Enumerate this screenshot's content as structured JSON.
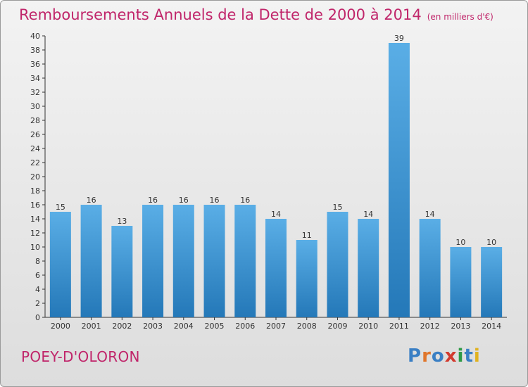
{
  "header": {
    "title": "Remboursements Annuels de la Dette de 2000 à 2014",
    "unit": "(en milliers d'€)"
  },
  "footer": {
    "commune": "POEY-D'OLORON",
    "logo": "Proxiti"
  },
  "colors": {
    "title": "#c0256a",
    "bar_top": "#5aaee6",
    "bar_bottom": "#2478b8"
  },
  "chart_data": {
    "type": "bar",
    "title": "Remboursements Annuels de la Dette de 2000 à 2014",
    "xlabel": "",
    "ylabel": "(en milliers d'€)",
    "categories": [
      "2000",
      "2001",
      "2002",
      "2003",
      "2004",
      "2005",
      "2006",
      "2007",
      "2008",
      "2009",
      "2010",
      "2011",
      "2012",
      "2013",
      "2014"
    ],
    "values": [
      15,
      16,
      13,
      16,
      16,
      16,
      16,
      14,
      11,
      15,
      14,
      39,
      14,
      10,
      10
    ],
    "ylim": [
      0,
      40
    ],
    "yticks": [
      0,
      2,
      4,
      6,
      8,
      10,
      12,
      14,
      16,
      18,
      20,
      22,
      24,
      26,
      28,
      30,
      32,
      34,
      36,
      38,
      40
    ],
    "grid": false
  }
}
